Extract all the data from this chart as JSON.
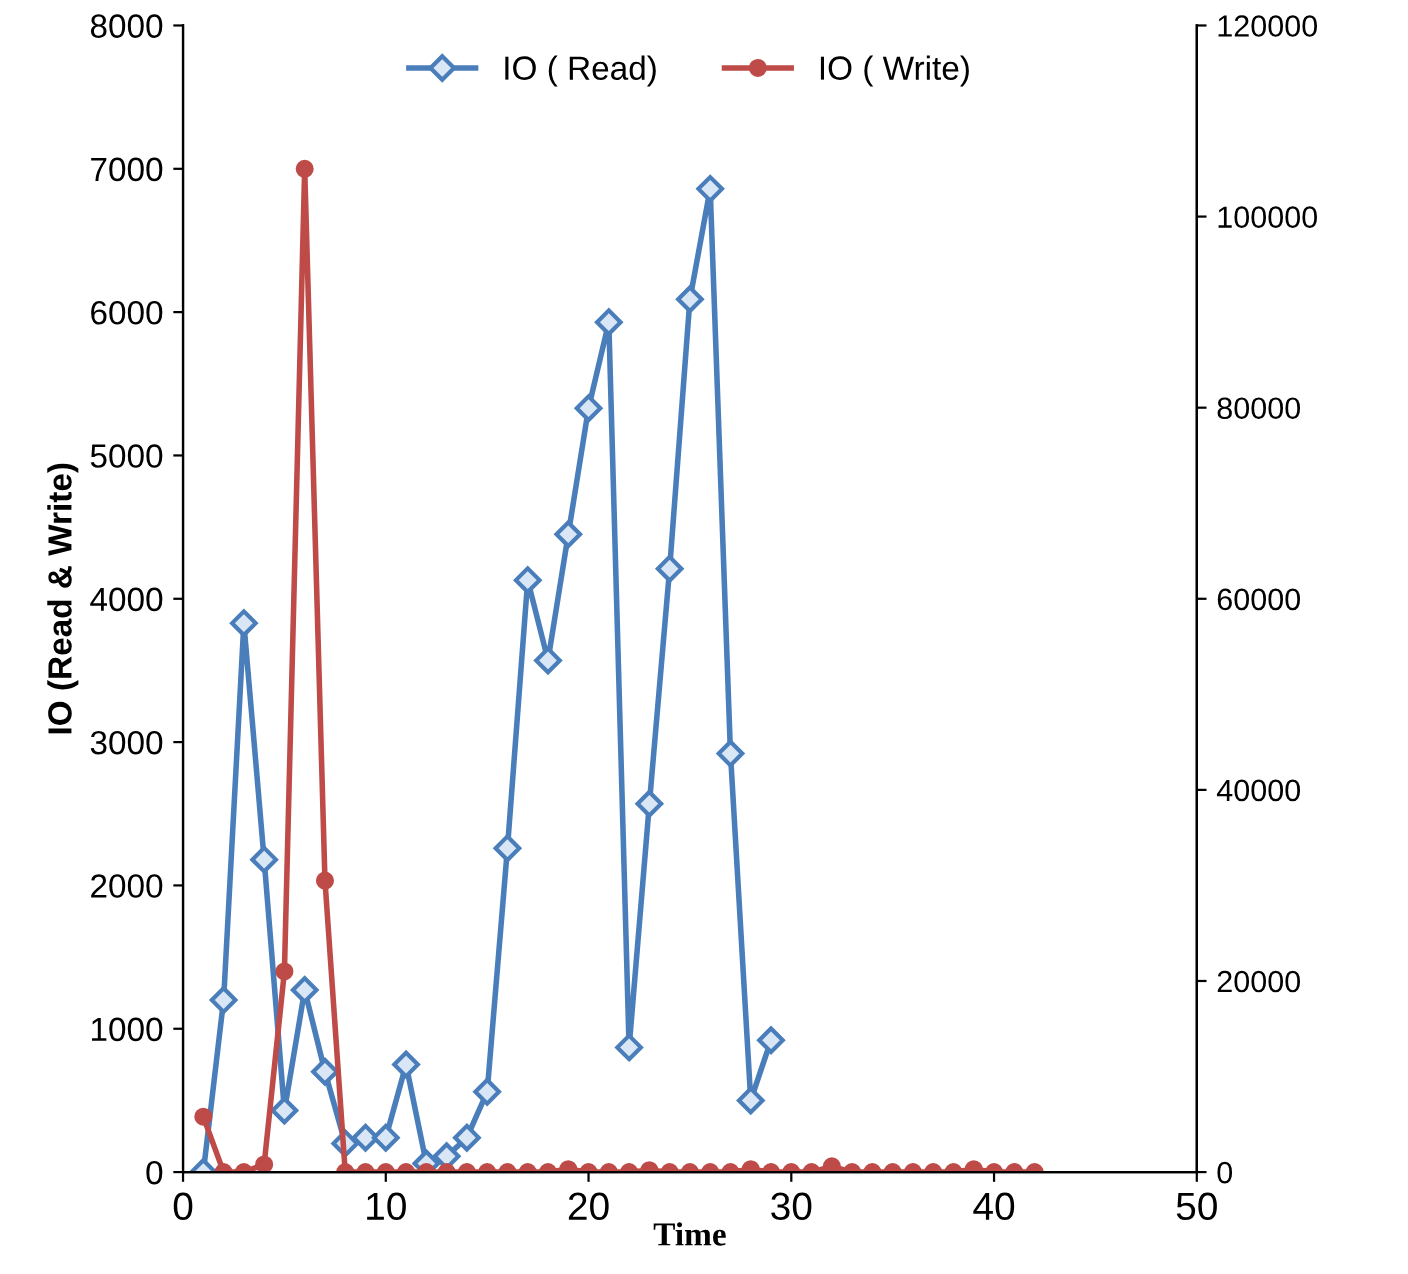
{
  "chart_data": {
    "type": "line",
    "xlabel": "Time",
    "ylabel": "IO (Read & Write)",
    "xlim": [
      0,
      50
    ],
    "xticks": [
      0,
      10,
      20,
      30,
      40,
      50
    ],
    "ylim": [
      0,
      8000
    ],
    "yticks": [
      0,
      1000,
      2000,
      3000,
      4000,
      5000,
      6000,
      7000,
      8000
    ],
    "y2lim": [
      0,
      120000
    ],
    "y2ticks": [
      0,
      20000,
      40000,
      60000,
      80000,
      100000,
      120000
    ],
    "legend": "top",
    "grid": false,
    "line_style": "solid",
    "series": [
      {
        "name": "IO ( Read)",
        "color": "#4a7ebb",
        "marker": "diamond",
        "x": [
          1,
          2,
          3,
          4,
          5,
          6,
          7,
          8,
          9,
          10,
          11,
          12,
          13,
          14,
          15,
          16,
          17,
          18,
          19,
          20,
          21,
          22,
          23,
          24,
          25,
          26,
          27,
          28,
          29
        ],
        "values": [
          0,
          1200,
          3830,
          2180,
          430,
          1270,
          700,
          200,
          240,
          240,
          750,
          60,
          110,
          240,
          560,
          2260,
          4130,
          3570,
          4450,
          5330,
          5930,
          870,
          2570,
          4210,
          6090,
          6860,
          2920,
          500,
          920
        ]
      },
      {
        "name": "IO ( Write)",
        "color": "#be4b48",
        "marker": "circle",
        "axis": "y2",
        "x": [
          1,
          2,
          3,
          4,
          5,
          6,
          7,
          8,
          9,
          10,
          11,
          12,
          13,
          14,
          15,
          16,
          17,
          18,
          19,
          20,
          21,
          22,
          23,
          24,
          25,
          26,
          27,
          28,
          29,
          30,
          31,
          32,
          33,
          34,
          35,
          36,
          37,
          38,
          39,
          40,
          41,
          42
        ],
        "values": [
          5800,
          0,
          0,
          800,
          21000,
          105000,
          30500,
          0,
          0,
          0,
          0,
          0,
          0,
          0,
          0,
          0,
          0,
          0,
          300,
          0,
          0,
          0,
          200,
          0,
          0,
          0,
          0,
          300,
          0,
          0,
          0,
          600,
          0,
          0,
          0,
          0,
          0,
          0,
          300,
          0,
          0,
          0
        ]
      }
    ]
  }
}
